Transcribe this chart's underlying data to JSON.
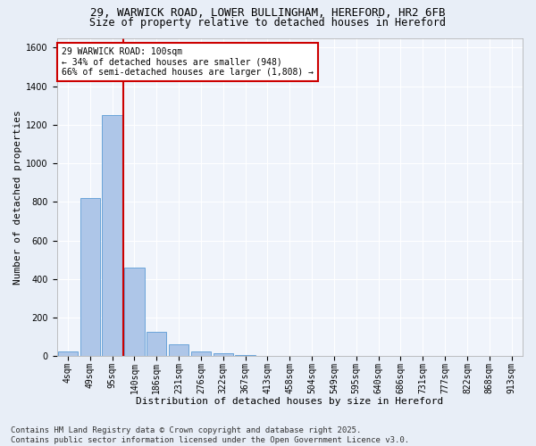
{
  "title1": "29, WARWICK ROAD, LOWER BULLINGHAM, HEREFORD, HR2 6FB",
  "title2": "Size of property relative to detached houses in Hereford",
  "xlabel": "Distribution of detached houses by size in Hereford",
  "ylabel": "Number of detached properties",
  "categories": [
    "4sqm",
    "49sqm",
    "95sqm",
    "140sqm",
    "186sqm",
    "231sqm",
    "276sqm",
    "322sqm",
    "367sqm",
    "413sqm",
    "458sqm",
    "504sqm",
    "549sqm",
    "595sqm",
    "640sqm",
    "686sqm",
    "731sqm",
    "777sqm",
    "822sqm",
    "868sqm",
    "913sqm"
  ],
  "values": [
    25,
    820,
    1250,
    460,
    125,
    60,
    25,
    15,
    8,
    0,
    0,
    0,
    0,
    0,
    0,
    0,
    0,
    0,
    0,
    0,
    0
  ],
  "bar_color": "#aec6e8",
  "bar_edge_color": "#5b9bd5",
  "vline_bin_index": 2,
  "vline_color": "#cc0000",
  "annotation_text": "29 WARWICK ROAD: 100sqm\n← 34% of detached houses are smaller (948)\n66% of semi-detached houses are larger (1,808) →",
  "annotation_box_color": "#cc0000",
  "ylim": [
    0,
    1650
  ],
  "yticks": [
    0,
    200,
    400,
    600,
    800,
    1000,
    1200,
    1400,
    1600
  ],
  "bg_color": "#e8eef7",
  "plot_bg_color": "#f0f4fb",
  "grid_color": "#ffffff",
  "footer": "Contains HM Land Registry data © Crown copyright and database right 2025.\nContains public sector information licensed under the Open Government Licence v3.0.",
  "title1_fontsize": 9,
  "title2_fontsize": 8.5,
  "axis_label_fontsize": 8,
  "tick_fontsize": 7,
  "footer_fontsize": 6.5,
  "annotation_fontsize": 7
}
